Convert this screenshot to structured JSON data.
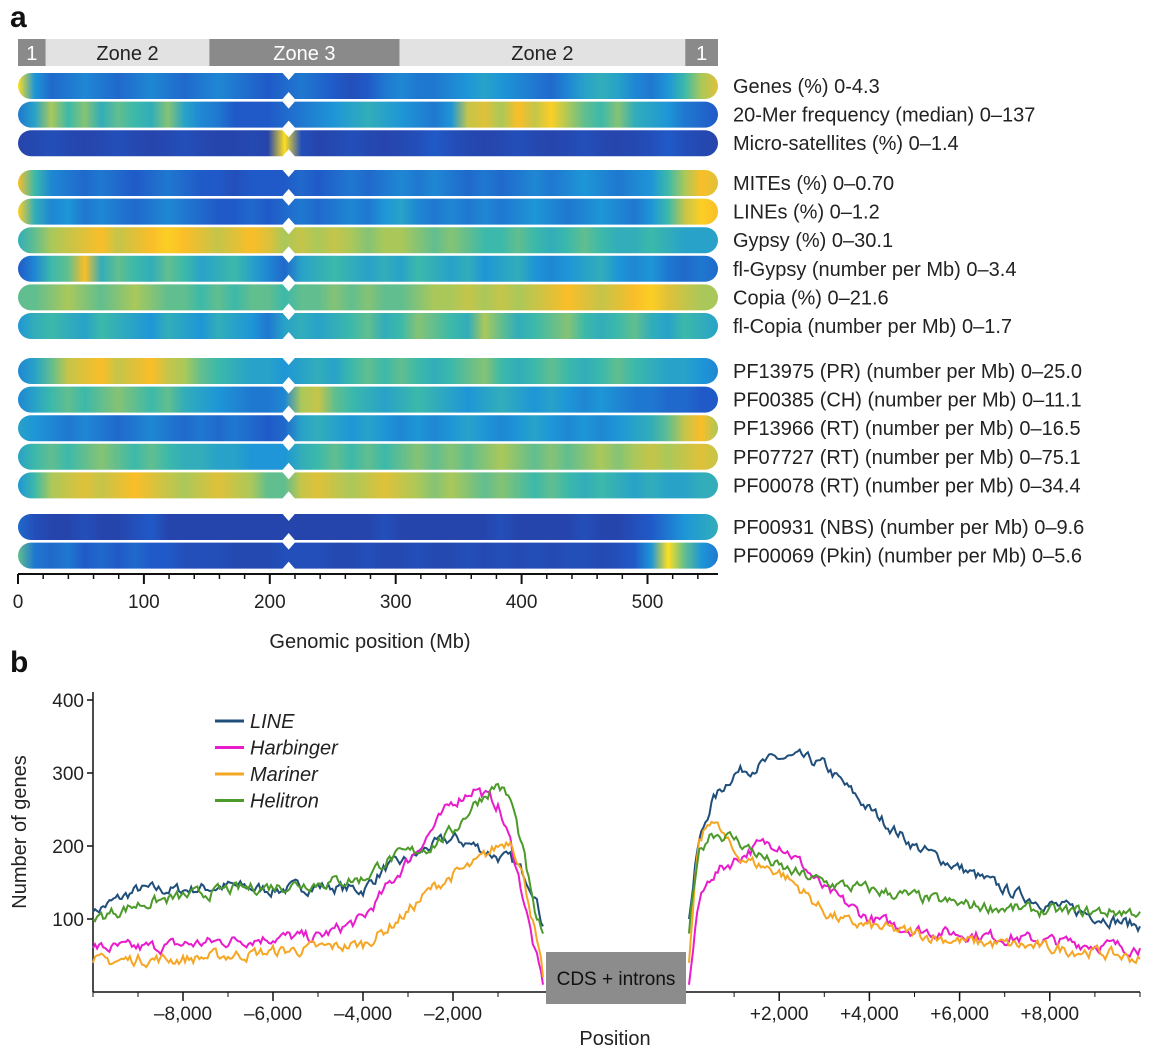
{
  "panel_a_letter": "a",
  "panel_b_letter": "b",
  "colors": {
    "zone_dark": "#8a8a8a",
    "zone_light": "#e2e2e2",
    "cds_box": "#8c8c8c",
    "heat_low": "#2b2f8f",
    "heat_mid": "#1e90d6",
    "heat_high": "#ffe81a"
  },
  "zones": [
    {
      "label": "1",
      "start": 0,
      "end": 22,
      "shade": "dark"
    },
    {
      "label": "Zone 2",
      "start": 22,
      "end": 152,
      "shade": "light"
    },
    {
      "label": "Zone 3",
      "start": 152,
      "end": 303,
      "shade": "dark"
    },
    {
      "label": "Zone 2",
      "start": 303,
      "end": 530,
      "shade": "light"
    },
    {
      "label": "1",
      "start": 530,
      "end": 556,
      "shade": "dark"
    }
  ],
  "centromere_mb": 215,
  "tracks": [
    {
      "label": "Genes (%) 0-4.3",
      "group": 0,
      "levels": [
        0.95,
        0.4,
        0.25,
        0.3,
        0.35,
        0.3,
        0.25,
        0.3,
        0.35,
        0.3,
        0.25,
        0.3,
        0.35,
        0.3,
        0.25,
        0.2,
        0.25,
        0.3,
        0.25,
        0.2,
        0.15,
        0.2,
        0.3,
        0.35,
        0.3,
        0.3,
        0.35,
        0.4,
        0.45,
        0.4,
        0.35,
        0.3,
        0.25,
        0.35,
        0.45,
        0.5,
        0.45,
        0.35,
        0.3,
        0.4,
        0.55,
        0.7,
        0.8
      ]
    },
    {
      "label": "20-Mer frequency (median) 0–137",
      "group": 0,
      "levels": [
        0.3,
        0.45,
        0.7,
        0.55,
        0.65,
        0.5,
        0.6,
        0.55,
        0.5,
        0.65,
        0.45,
        0.35,
        0.3,
        0.2,
        0.2,
        0.2,
        0.25,
        0.3,
        0.35,
        0.4,
        0.45,
        0.5,
        0.45,
        0.4,
        0.35,
        0.3,
        0.4,
        0.75,
        0.8,
        0.7,
        0.85,
        0.75,
        0.9,
        0.7,
        0.6,
        0.55,
        0.65,
        0.5,
        0.45,
        0.4,
        0.3,
        0.25,
        0.2
      ]
    },
    {
      "label": "Micro-satellites (%) 0–1.4",
      "group": 0,
      "levels": [
        0.1,
        0.12,
        0.15,
        0.12,
        0.1,
        0.12,
        0.15,
        0.12,
        0.1,
        0.12,
        0.15,
        0.12,
        0.1,
        0.1,
        0.12,
        0.1,
        0.95,
        0.15,
        0.1,
        0.12,
        0.15,
        0.12,
        0.1,
        0.12,
        0.15,
        0.2,
        0.15,
        0.12,
        0.1,
        0.12,
        0.15,
        0.12,
        0.1,
        0.12,
        0.15,
        0.12,
        0.1,
        0.12,
        0.15,
        0.2,
        0.15,
        0.12,
        0.1
      ]
    },
    {
      "label": "MITEs (%) 0–0.70",
      "group": 1,
      "levels": [
        0.85,
        0.55,
        0.35,
        0.3,
        0.25,
        0.3,
        0.25,
        0.2,
        0.25,
        0.3,
        0.25,
        0.2,
        0.2,
        0.15,
        0.2,
        0.2,
        0.2,
        0.25,
        0.2,
        0.25,
        0.3,
        0.25,
        0.3,
        0.35,
        0.3,
        0.35,
        0.3,
        0.25,
        0.3,
        0.25,
        0.3,
        0.35,
        0.3,
        0.35,
        0.4,
        0.35,
        0.3,
        0.35,
        0.4,
        0.55,
        0.7,
        0.85,
        0.8
      ]
    },
    {
      "label": "LINEs (%) 0–1.2",
      "group": 1,
      "levels": [
        0.9,
        0.5,
        0.35,
        0.4,
        0.3,
        0.35,
        0.3,
        0.25,
        0.3,
        0.35,
        0.3,
        0.25,
        0.2,
        0.2,
        0.25,
        0.2,
        0.25,
        0.3,
        0.25,
        0.3,
        0.35,
        0.3,
        0.4,
        0.45,
        0.35,
        0.3,
        0.35,
        0.3,
        0.35,
        0.3,
        0.35,
        0.4,
        0.35,
        0.3,
        0.35,
        0.4,
        0.35,
        0.3,
        0.4,
        0.55,
        0.75,
        0.9,
        0.85
      ]
    },
    {
      "label": "Gypsy (%) 0–30.1",
      "group": 1,
      "levels": [
        0.5,
        0.6,
        0.7,
        0.75,
        0.8,
        0.85,
        0.75,
        0.8,
        0.85,
        0.9,
        0.85,
        0.8,
        0.75,
        0.8,
        0.85,
        0.8,
        0.7,
        0.75,
        0.7,
        0.75,
        0.7,
        0.65,
        0.7,
        0.7,
        0.65,
        0.6,
        0.65,
        0.6,
        0.55,
        0.55,
        0.6,
        0.55,
        0.5,
        0.55,
        0.6,
        0.55,
        0.5,
        0.5,
        0.55,
        0.5,
        0.45,
        0.45,
        0.45
      ]
    },
    {
      "label": "fl-Gypsy (number per Mb) 0–3.4",
      "group": 1,
      "levels": [
        0.2,
        0.35,
        0.55,
        0.6,
        0.85,
        0.5,
        0.6,
        0.55,
        0.5,
        0.6,
        0.55,
        0.45,
        0.5,
        0.55,
        0.45,
        0.35,
        0.25,
        0.45,
        0.5,
        0.55,
        0.5,
        0.45,
        0.5,
        0.45,
        0.55,
        0.5,
        0.45,
        0.5,
        0.4,
        0.45,
        0.5,
        0.4,
        0.35,
        0.4,
        0.45,
        0.5,
        0.4,
        0.35,
        0.4,
        0.3,
        0.25,
        0.3,
        0.25
      ]
    },
    {
      "label": "Copia (%) 0–21.6",
      "group": 1,
      "levels": [
        0.6,
        0.6,
        0.65,
        0.7,
        0.65,
        0.6,
        0.65,
        0.7,
        0.65,
        0.6,
        0.6,
        0.55,
        0.6,
        0.55,
        0.6,
        0.6,
        0.55,
        0.6,
        0.6,
        0.65,
        0.6,
        0.65,
        0.6,
        0.6,
        0.65,
        0.7,
        0.7,
        0.75,
        0.7,
        0.75,
        0.7,
        0.75,
        0.8,
        0.85,
        0.8,
        0.75,
        0.8,
        0.85,
        0.9,
        0.8,
        0.75,
        0.7,
        0.7
      ]
    },
    {
      "label": "fl-Copia (number per Mb) 0–1.7",
      "group": 1,
      "levels": [
        0.4,
        0.5,
        0.55,
        0.5,
        0.45,
        0.55,
        0.5,
        0.45,
        0.4,
        0.5,
        0.45,
        0.4,
        0.5,
        0.45,
        0.4,
        0.3,
        0.45,
        0.5,
        0.45,
        0.5,
        0.55,
        0.6,
        0.5,
        0.55,
        0.65,
        0.6,
        0.55,
        0.5,
        0.7,
        0.6,
        0.5,
        0.55,
        0.6,
        0.65,
        0.55,
        0.5,
        0.55,
        0.6,
        0.5,
        0.45,
        0.55,
        0.5,
        0.45
      ]
    },
    {
      "label": "PF13975 (PR) (number per Mb) 0–25.0",
      "group": 2,
      "levels": [
        0.35,
        0.45,
        0.6,
        0.75,
        0.8,
        0.85,
        0.75,
        0.8,
        0.85,
        0.75,
        0.7,
        0.6,
        0.55,
        0.5,
        0.45,
        0.45,
        0.4,
        0.45,
        0.5,
        0.45,
        0.55,
        0.6,
        0.55,
        0.6,
        0.55,
        0.5,
        0.55,
        0.6,
        0.65,
        0.55,
        0.5,
        0.55,
        0.6,
        0.55,
        0.5,
        0.55,
        0.6,
        0.55,
        0.5,
        0.45,
        0.45,
        0.4,
        0.35
      ]
    },
    {
      "label": "PF00385 (CH) (number per Mb) 0–11.1",
      "group": 2,
      "levels": [
        0.35,
        0.45,
        0.55,
        0.6,
        0.55,
        0.6,
        0.65,
        0.6,
        0.55,
        0.6,
        0.5,
        0.45,
        0.4,
        0.35,
        0.3,
        0.3,
        0.35,
        0.7,
        0.75,
        0.6,
        0.55,
        0.5,
        0.45,
        0.5,
        0.55,
        0.5,
        0.45,
        0.4,
        0.45,
        0.5,
        0.45,
        0.4,
        0.45,
        0.4,
        0.35,
        0.4,
        0.35,
        0.3,
        0.3,
        0.25,
        0.25,
        0.2,
        0.2
      ]
    },
    {
      "label": "PF13966 (RT) (number per Mb) 0–16.5",
      "group": 2,
      "levels": [
        0.45,
        0.4,
        0.35,
        0.3,
        0.35,
        0.3,
        0.25,
        0.3,
        0.35,
        0.3,
        0.25,
        0.3,
        0.25,
        0.3,
        0.25,
        0.2,
        0.25,
        0.45,
        0.5,
        0.45,
        0.4,
        0.45,
        0.4,
        0.35,
        0.4,
        0.35,
        0.4,
        0.45,
        0.4,
        0.35,
        0.4,
        0.45,
        0.4,
        0.35,
        0.4,
        0.35,
        0.4,
        0.45,
        0.5,
        0.6,
        0.75,
        0.85,
        0.7
      ]
    },
    {
      "label": "PF07727 (RT) (number per Mb) 0–75.1",
      "group": 2,
      "levels": [
        0.45,
        0.55,
        0.6,
        0.55,
        0.6,
        0.65,
        0.6,
        0.55,
        0.6,
        0.55,
        0.5,
        0.5,
        0.45,
        0.45,
        0.4,
        0.4,
        0.4,
        0.5,
        0.55,
        0.6,
        0.55,
        0.6,
        0.55,
        0.6,
        0.65,
        0.6,
        0.65,
        0.6,
        0.65,
        0.7,
        0.65,
        0.6,
        0.65,
        0.6,
        0.65,
        0.7,
        0.65,
        0.7,
        0.75,
        0.7,
        0.75,
        0.8,
        0.75
      ]
    },
    {
      "label": "PF00078 (RT) (number per Mb) 0–34.4",
      "group": 2,
      "levels": [
        0.4,
        0.55,
        0.7,
        0.75,
        0.8,
        0.75,
        0.8,
        0.85,
        0.8,
        0.75,
        0.7,
        0.75,
        0.8,
        0.75,
        0.7,
        0.6,
        0.6,
        0.75,
        0.8,
        0.75,
        0.7,
        0.75,
        0.8,
        0.75,
        0.7,
        0.65,
        0.7,
        0.65,
        0.6,
        0.65,
        0.6,
        0.55,
        0.6,
        0.55,
        0.5,
        0.55,
        0.5,
        0.45,
        0.5,
        0.45,
        0.45,
        0.5,
        0.5
      ]
    },
    {
      "label": "PF00931 (NBS) (number per Mb) 0–9.6",
      "group": 3,
      "levels": [
        0.25,
        0.15,
        0.1,
        0.1,
        0.15,
        0.1,
        0.1,
        0.15,
        0.2,
        0.1,
        0.1,
        0.1,
        0.1,
        0.1,
        0.1,
        0.1,
        0.1,
        0.1,
        0.1,
        0.1,
        0.1,
        0.1,
        0.15,
        0.1,
        0.1,
        0.1,
        0.1,
        0.1,
        0.1,
        0.15,
        0.1,
        0.1,
        0.1,
        0.1,
        0.15,
        0.1,
        0.1,
        0.15,
        0.2,
        0.3,
        0.4,
        0.45,
        0.5
      ]
    },
    {
      "label": "PF00069 (Pkin) (number per Mb) 0–5.6",
      "group": 3,
      "levels": [
        0.6,
        0.3,
        0.25,
        0.3,
        0.2,
        0.25,
        0.2,
        0.25,
        0.2,
        0.2,
        0.15,
        0.15,
        0.15,
        0.12,
        0.12,
        0.12,
        0.15,
        0.15,
        0.15,
        0.12,
        0.12,
        0.15,
        0.12,
        0.12,
        0.15,
        0.12,
        0.12,
        0.15,
        0.12,
        0.15,
        0.12,
        0.15,
        0.12,
        0.15,
        0.15,
        0.12,
        0.15,
        0.2,
        0.4,
        0.95,
        0.6,
        0.4,
        0.3
      ]
    }
  ],
  "panel_a_axis": {
    "title": "Genomic position (Mb)",
    "xlim": [
      0,
      556
    ],
    "ticks": [
      0,
      100,
      200,
      300,
      400,
      500
    ],
    "tick_labels": [
      "0",
      "100",
      "200",
      "300",
      "400",
      "500"
    ]
  },
  "cds_box_label": "CDS + introns",
  "chart_data": {
    "type": "line",
    "title": "",
    "xlabel": "Position",
    "ylabel": "Number of genes",
    "ylim": [
      0,
      400
    ],
    "y_ticks": [
      100,
      200,
      300,
      400
    ],
    "upstream": {
      "xlim": [
        -10000,
        0
      ],
      "tick_values": [
        -8000,
        -6000,
        -4000,
        -2000
      ],
      "tick_labels": [
        "–8,000",
        "–6,000",
        "–4,000",
        "–2,000"
      ],
      "x": [
        -10000,
        -9000,
        -8000,
        -7000,
        -6000,
        -5000,
        -4000,
        -3500,
        -3000,
        -2500,
        -2000,
        -1500,
        -1000,
        -700,
        -400,
        -200,
        0
      ]
    },
    "downstream": {
      "xlim": [
        0,
        10000
      ],
      "tick_values": [
        2000,
        4000,
        6000,
        8000
      ],
      "tick_labels": [
        "+2,000",
        "+4,000",
        "+6,000",
        "+8,000"
      ],
      "x": [
        0,
        200,
        500,
        1000,
        1500,
        2000,
        2500,
        3000,
        3500,
        4000,
        5000,
        6000,
        7000,
        8000,
        9000,
        10000
      ]
    },
    "legend_position": "top-left",
    "series": [
      {
        "name": "LINE",
        "color": "#1f4e7a",
        "upstream": [
          110,
          140,
          140,
          145,
          140,
          145,
          140,
          170,
          180,
          200,
          210,
          200,
          185,
          180,
          160,
          140,
          90
        ],
        "downstream": [
          100,
          200,
          260,
          300,
          310,
          320,
          320,
          310,
          280,
          250,
          200,
          170,
          140,
          120,
          105,
          90
        ]
      },
      {
        "name": "Harbinger",
        "color": "#e81ccc",
        "upstream": [
          60,
          60,
          65,
          70,
          75,
          75,
          100,
          140,
          180,
          220,
          260,
          280,
          255,
          200,
          120,
          60,
          10
        ],
        "downstream": [
          10,
          120,
          160,
          180,
          200,
          205,
          175,
          140,
          120,
          100,
          85,
          80,
          75,
          70,
          65,
          60
        ]
      },
      {
        "name": "Mariner",
        "color": "#f5a623",
        "upstream": [
          40,
          45,
          45,
          50,
          55,
          60,
          65,
          85,
          110,
          140,
          160,
          175,
          200,
          210,
          150,
          90,
          20
        ],
        "downstream": [
          40,
          200,
          240,
          190,
          175,
          165,
          140,
          110,
          95,
          90,
          80,
          70,
          65,
          60,
          55,
          45
        ]
      },
      {
        "name": "Helitron",
        "color": "#4c9a2a",
        "upstream": [
          100,
          120,
          130,
          140,
          145,
          150,
          155,
          180,
          190,
          200,
          220,
          260,
          285,
          260,
          180,
          110,
          80
        ],
        "downstream": [
          80,
          190,
          220,
          210,
          190,
          170,
          160,
          150,
          145,
          140,
          130,
          120,
          115,
          110,
          110,
          110
        ]
      }
    ]
  }
}
